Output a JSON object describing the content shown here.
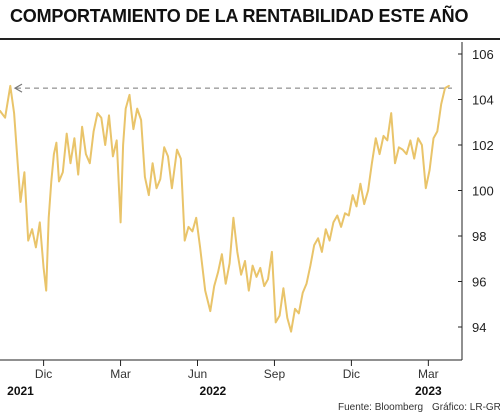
{
  "title": "COMPORTAMIENTO DE LA RENTABILIDAD ESTE AÑO",
  "source": "Fuente: Bloomberg",
  "credit": "Gráfico: LR-GR",
  "colors": {
    "line": "#e9c46a",
    "reference": "#777777",
    "axis": "#222222"
  },
  "chart_data": {
    "type": "line",
    "title": "COMPORTAMIENTO DE LA RENTABILIDAD ESTE AÑO",
    "xlabel": "",
    "ylabel": "",
    "ylim": [
      93,
      107
    ],
    "y_ticks": [
      94,
      96,
      98,
      100,
      102,
      104,
      106
    ],
    "x_ticks": [
      {
        "x": 2.0,
        "label": "Dic"
      },
      {
        "x": 5.0,
        "label": "Mar"
      },
      {
        "x": 8.0,
        "label": "Jun"
      },
      {
        "x": 11.0,
        "label": "Sep"
      },
      {
        "x": 14.0,
        "label": "Dic"
      },
      {
        "x": 17.0,
        "label": "Mar"
      }
    ],
    "year_labels": [
      {
        "x": 1.1,
        "label": "2021"
      },
      {
        "x": 8.6,
        "label": "2022"
      },
      {
        "x": 17.0,
        "label": "2023"
      }
    ],
    "xlim": [
      0.3,
      18.0
    ],
    "grid": false,
    "reference_line": {
      "y": 104.5,
      "style": "dashed",
      "arrow": "left"
    },
    "series": [
      {
        "color": "#e9c46a",
        "x": [
          0.3,
          0.5,
          0.7,
          0.85,
          1.0,
          1.1,
          1.25,
          1.4,
          1.55,
          1.7,
          1.85,
          2.0,
          2.1,
          2.2,
          2.3,
          2.4,
          2.5,
          2.6,
          2.75,
          2.9,
          3.05,
          3.2,
          3.35,
          3.5,
          3.65,
          3.8,
          3.95,
          4.1,
          4.25,
          4.4,
          4.55,
          4.7,
          4.85,
          5.0,
          5.1,
          5.2,
          5.35,
          5.5,
          5.65,
          5.8,
          5.95,
          6.1,
          6.25,
          6.4,
          6.55,
          6.7,
          6.85,
          7.0,
          7.2,
          7.35,
          7.5,
          7.65,
          7.8,
          7.95,
          8.1,
          8.3,
          8.5,
          8.65,
          8.8,
          8.95,
          9.1,
          9.25,
          9.4,
          9.55,
          9.7,
          9.85,
          10.0,
          10.15,
          10.3,
          10.45,
          10.6,
          10.75,
          10.9,
          11.05,
          11.2,
          11.35,
          11.5,
          11.65,
          11.8,
          11.95,
          12.1,
          12.25,
          12.4,
          12.55,
          12.7,
          12.85,
          13.0,
          13.15,
          13.3,
          13.45,
          13.6,
          13.75,
          13.9,
          14.05,
          14.2,
          14.35,
          14.5,
          14.65,
          14.8,
          14.95,
          15.1,
          15.25,
          15.4,
          15.55,
          15.7,
          15.85,
          16.0,
          16.15,
          16.3,
          16.45,
          16.6,
          16.75,
          16.9,
          17.05,
          17.2,
          17.35,
          17.5,
          17.65,
          17.8
        ],
        "values": [
          103.5,
          103.2,
          104.6,
          103.4,
          101.0,
          99.5,
          100.8,
          97.8,
          98.3,
          97.5,
          98.6,
          96.6,
          95.6,
          98.8,
          100.4,
          101.6,
          102.1,
          100.4,
          100.8,
          102.5,
          101.2,
          102.3,
          100.7,
          102.8,
          101.6,
          101.2,
          102.6,
          103.4,
          103.2,
          102.0,
          103.3,
          101.5,
          102.2,
          98.6,
          102.0,
          103.6,
          104.2,
          102.7,
          103.6,
          103.1,
          100.6,
          99.8,
          101.2,
          100.1,
          100.5,
          101.9,
          101.5,
          100.1,
          101.8,
          101.4,
          97.8,
          98.4,
          98.2,
          98.8,
          97.5,
          95.6,
          94.7,
          95.8,
          96.4,
          97.2,
          95.9,
          96.8,
          98.8,
          97.3,
          96.3,
          96.9,
          95.6,
          96.7,
          96.2,
          96.6,
          95.8,
          96.1,
          97.3,
          94.2,
          94.5,
          95.7,
          94.4,
          93.8,
          94.8,
          94.6,
          95.5,
          95.9,
          96.7,
          97.6,
          97.9,
          97.3,
          98.3,
          97.8,
          98.6,
          98.9,
          98.4,
          99.0,
          98.9,
          99.8,
          99.3,
          100.3,
          99.4,
          100.0,
          101.2,
          102.3,
          101.6,
          102.4,
          102.2,
          103.4,
          101.2,
          101.9,
          101.8,
          101.6,
          102.2,
          101.4,
          102.3,
          102.0,
          100.1,
          100.9,
          102.3,
          102.6,
          103.8,
          104.5,
          104.6
        ]
      }
    ]
  }
}
